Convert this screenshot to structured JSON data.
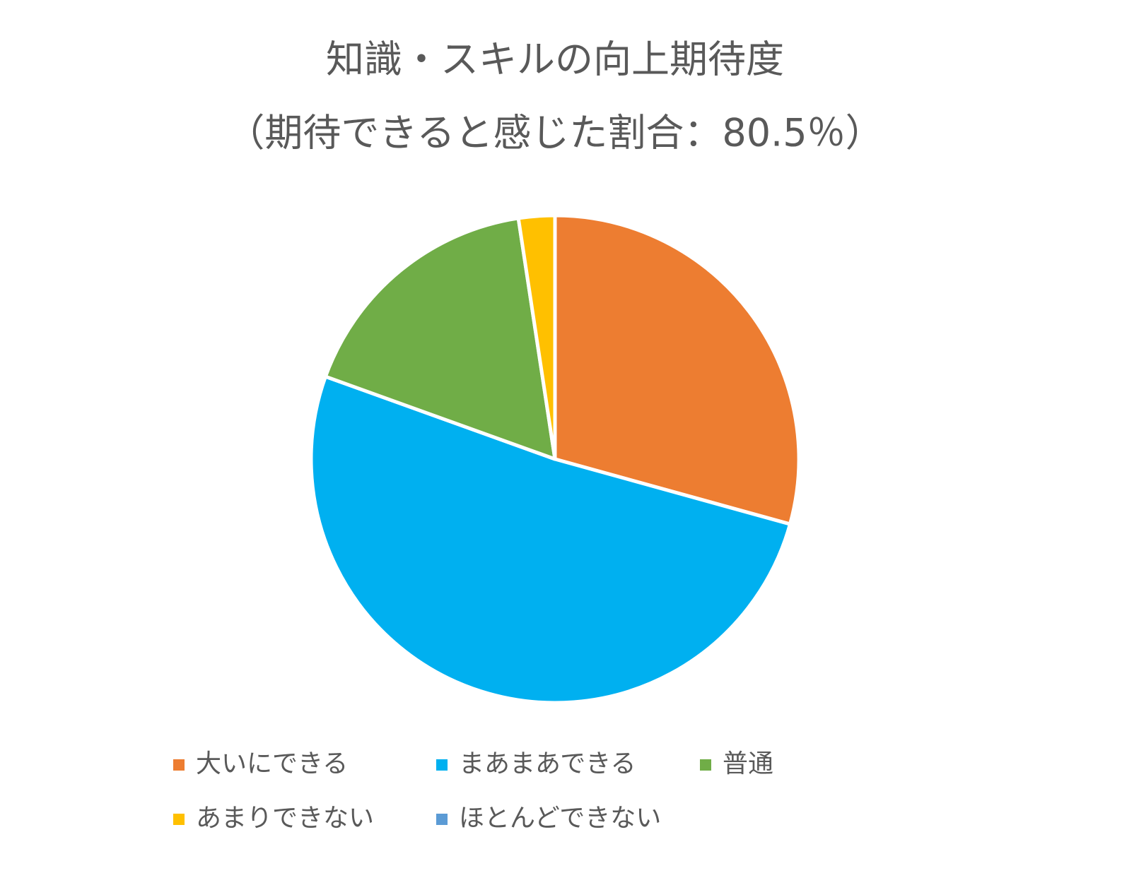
{
  "chart_data": {
    "type": "pie",
    "title": "知識・スキルの向上期待度",
    "subtitle": "（期待できると感じた割合：80.5％）",
    "categories": [
      "大いにできる",
      "まあまあできる",
      "普通",
      "あまりできない",
      "ほとんどできない"
    ],
    "values": [
      29.3,
      51.2,
      17.1,
      2.4,
      0
    ],
    "colors": [
      "#ED7D31",
      "#00B0F0",
      "#70AD47",
      "#FFC000",
      "#5B9BD5"
    ],
    "legend": "bottom"
  }
}
